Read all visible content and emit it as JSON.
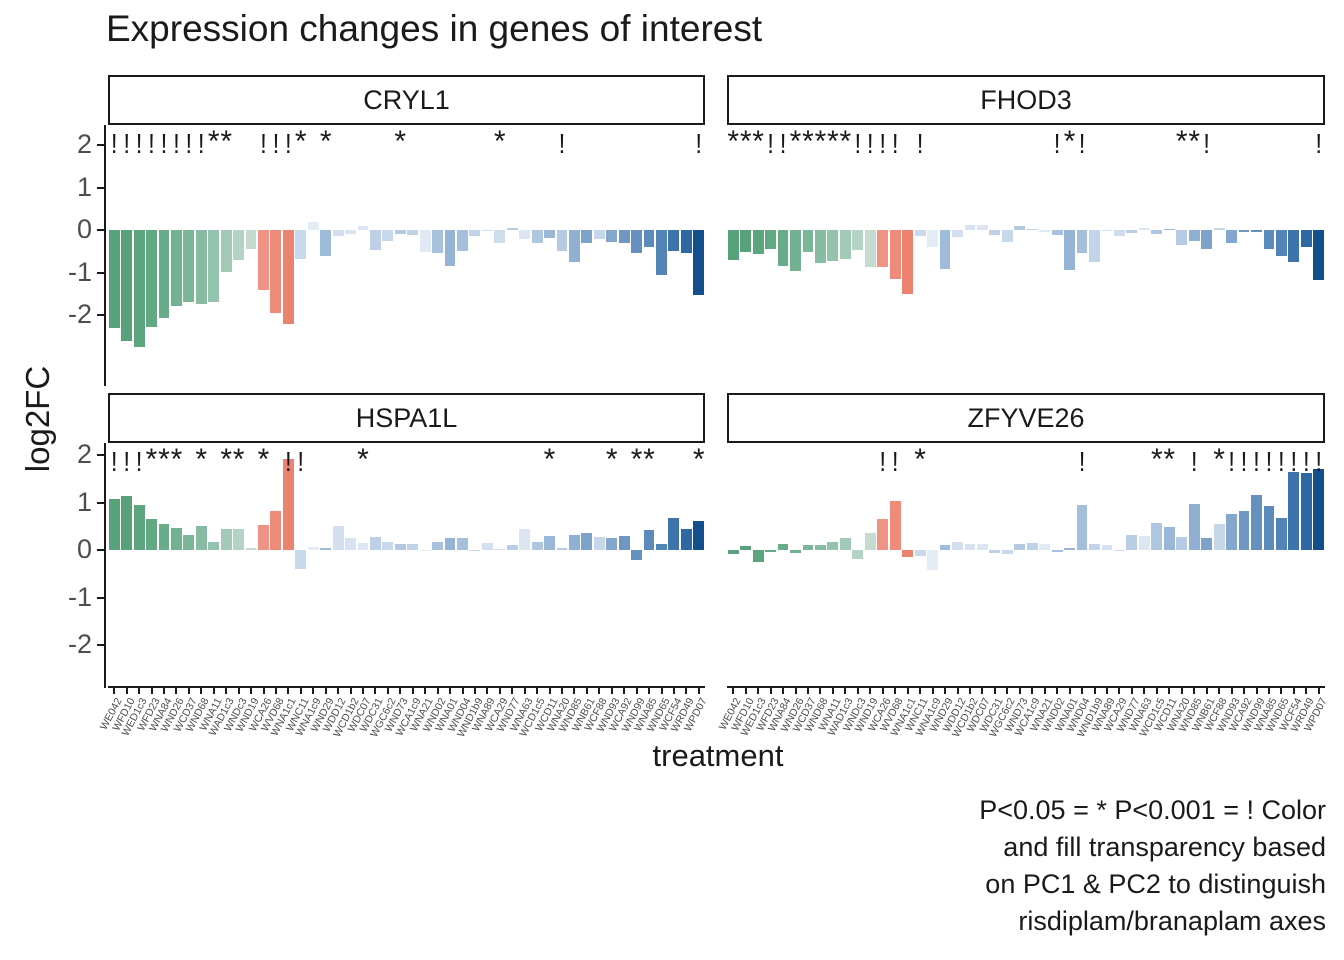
{
  "title": "Expression changes in genes of interest",
  "caption_lines": [
    "P<0.05 = * P<0.001 = ! Color",
    "and fill transparency based",
    "on PC1 & PC2 to distinguish",
    "risdiplam/branaplam axes"
  ],
  "chart_data": {
    "type": "bar",
    "title": "Expression changes in genes of interest",
    "xlabel": "treatment",
    "ylabel": "log2FC",
    "ylim": [
      -2.8,
      2.1
    ],
    "y_ticks": [
      "2",
      "1",
      "0",
      "-1",
      "-2"
    ],
    "y_tick_values": [
      2,
      1,
      0,
      -1,
      -2
    ],
    "grid": false,
    "legend_note": "significance: * = P<0.05, ! = P<0.001; bar fill encodes PC1 & PC2 (green = branaplam-like, salmon, blue = risdiplam-like)",
    "categories": [
      "WE042",
      "WFD10",
      "WED1c3",
      "WFD23",
      "WNA84",
      "WND26",
      "WCD37",
      "WND68",
      "WNA11",
      "WAD1c3",
      "WNDc3",
      "WND19",
      "WCA26",
      "WVD68",
      "WNA1c1",
      "WNC11",
      "WNA1c9",
      "WND29",
      "WDD12",
      "WCD1b2",
      "WDC07",
      "WDC31",
      "WGC6c2",
      "WND73",
      "WCA1c9",
      "WNA21",
      "WND02",
      "WNA01",
      "WND04",
      "WND1b9",
      "WNA89",
      "WCA29",
      "WND77",
      "WNA63",
      "WCD1c5",
      "WCD11",
      "WNA20",
      "WND85",
      "WNB61",
      "WCF88",
      "WND93",
      "WCA92",
      "WND99",
      "WNA85",
      "WND65",
      "WCF54",
      "WRD49",
      "WPD07"
    ],
    "bar_colors": [
      "#58a27b",
      "#58a27b",
      "#5ca57f",
      "#62a883",
      "#69ac89",
      "#72b191",
      "#7cb699",
      "#87bca2",
      "#93c3ac",
      "#a2cab7",
      "#b3d3c3",
      "#c4dccf",
      "#f09384",
      "#ee8b7a",
      "#ec8270",
      "#c9d9ec",
      "#e3ebf5",
      "#9fbbda",
      "#d3dff0",
      "#d8e3f1",
      "#dde6f3",
      "#bdd0e7",
      "#c8d8ec",
      "#b3c9e2",
      "#bed2e8",
      "#e0e9f4",
      "#a8c1de",
      "#96b4d6",
      "#a4bfdc",
      "#c2d4e9",
      "#d5e1f0",
      "#cfdcee",
      "#b9cde4",
      "#dce6f2",
      "#aec6e0",
      "#9bb7d8",
      "#b6cbe3",
      "#8fafd3",
      "#7da3ca",
      "#c6d7ea",
      "#84a8cd",
      "#6f97c2",
      "#6590bf",
      "#5c8abb",
      "#5384b8",
      "#3e74ad",
      "#2e68a4",
      "#134e8d"
    ],
    "facets": [
      {
        "gene": "CRYL1",
        "values": [
          -2.3,
          -2.62,
          -2.75,
          -2.28,
          -2.08,
          -1.78,
          -1.7,
          -1.75,
          -1.7,
          -0.98,
          -0.7,
          -0.45,
          -1.4,
          -1.95,
          -2.22,
          -0.68,
          0.18,
          -0.6,
          -0.13,
          -0.1,
          0.09,
          -0.46,
          -0.26,
          -0.1,
          -0.12,
          -0.52,
          -0.55,
          -0.85,
          -0.5,
          -0.15,
          -0.03,
          -0.3,
          0.04,
          -0.22,
          -0.3,
          -0.18,
          -0.5,
          -0.75,
          -0.3,
          -0.22,
          -0.28,
          -0.3,
          -0.55,
          -0.4,
          -1.05,
          -0.5,
          -0.55,
          -1.52
        ],
        "significance": [
          "!",
          "!",
          "!",
          "!",
          "!",
          "!",
          "!",
          "!",
          "*",
          "*",
          "",
          "",
          "!",
          "!",
          "!",
          "*",
          "",
          "*",
          "",
          "",
          "",
          "",
          "",
          "*",
          "",
          "",
          "",
          "",
          "",
          "",
          "",
          "*",
          "",
          "",
          "",
          "",
          "!",
          "",
          "",
          "",
          "",
          "",
          "",
          "",
          "",
          "",
          "",
          "!"
        ]
      },
      {
        "gene": "FHOD3",
        "values": [
          -0.7,
          -0.52,
          -0.57,
          -0.45,
          -0.85,
          -0.96,
          -0.52,
          -0.77,
          -0.72,
          -0.69,
          -0.47,
          -0.87,
          -0.87,
          -1.15,
          -1.5,
          -0.13,
          -0.41,
          -0.91,
          -0.17,
          0.13,
          0.13,
          -0.11,
          -0.28,
          0.1,
          0.03,
          -0.04,
          -0.12,
          -0.95,
          -0.55,
          -0.75,
          -0.02,
          -0.15,
          -0.08,
          0.04,
          -0.1,
          0.02,
          -0.35,
          -0.25,
          -0.45,
          0.05,
          -0.3,
          -0.05,
          -0.05,
          -0.45,
          -0.6,
          -0.75,
          -0.4,
          -1.18
        ],
        "significance": [
          "*",
          "*",
          "*",
          "!",
          "!",
          "*",
          "*",
          "*",
          "*",
          "*",
          "!",
          "!",
          "!",
          "!",
          "",
          "!",
          "",
          "",
          "",
          "",
          "",
          "",
          "",
          "",
          "",
          "",
          "!",
          "*",
          "!",
          "",
          "",
          "",
          "",
          "",
          "",
          "",
          "*",
          "*",
          "!",
          "",
          "",
          "",
          "",
          "",
          "",
          "",
          "",
          "!"
        ]
      },
      {
        "gene": "HSPA1L",
        "values": [
          1.08,
          1.13,
          0.95,
          0.66,
          0.55,
          0.47,
          0.32,
          0.51,
          0.18,
          0.44,
          0.44,
          0.05,
          0.53,
          0.82,
          1.92,
          -0.39,
          0.07,
          0.05,
          0.5,
          0.25,
          0.15,
          0.28,
          0.17,
          0.12,
          0.12,
          -0.03,
          0.18,
          0.25,
          0.25,
          -0.02,
          0.15,
          0.02,
          0.1,
          0.45,
          0.18,
          0.3,
          0.05,
          0.32,
          0.35,
          0.28,
          0.25,
          0.3,
          -0.2,
          0.42,
          0.12,
          0.68,
          0.45,
          0.62
        ],
        "significance": [
          "!",
          "!",
          "!",
          "*",
          "*",
          "*",
          "",
          "*",
          "",
          "*",
          "*",
          "",
          "*",
          "",
          "!",
          "!",
          "",
          "",
          "",
          "",
          "*",
          "",
          "",
          "",
          "",
          "",
          "",
          "",
          "",
          "",
          "",
          "",
          "",
          "",
          "",
          "*",
          "",
          "",
          "",
          "",
          "*",
          "",
          "*",
          "*",
          "",
          "",
          "",
          "*"
        ]
      },
      {
        "gene": "ZFYVE26",
        "values": [
          -0.08,
          0.08,
          -0.25,
          -0.04,
          0.12,
          -0.06,
          0.1,
          0.1,
          0.18,
          0.25,
          -0.18,
          0.35,
          0.65,
          1.03,
          -0.15,
          -0.12,
          -0.42,
          0.1,
          0.18,
          0.12,
          0.12,
          -0.06,
          -0.08,
          0.13,
          0.15,
          0.12,
          -0.05,
          0.05,
          0.95,
          0.13,
          0.1,
          -0.02,
          0.32,
          0.3,
          0.58,
          0.48,
          0.28,
          0.98,
          0.25,
          0.55,
          0.75,
          0.82,
          1.15,
          0.92,
          0.68,
          1.65,
          1.62,
          1.7
        ],
        "significance": [
          "",
          "",
          "",
          "",
          "",
          "",
          "",
          "",
          "",
          "",
          "",
          "",
          "!",
          "!",
          "",
          "*",
          "",
          "",
          "",
          "",
          "",
          "",
          "",
          "",
          "",
          "",
          "",
          "",
          "!",
          "",
          "",
          "",
          "",
          "",
          "*",
          "*",
          "",
          "!",
          "",
          "*",
          "!",
          "!",
          "!",
          "!",
          "!",
          "!",
          "!",
          "!"
        ]
      }
    ]
  }
}
